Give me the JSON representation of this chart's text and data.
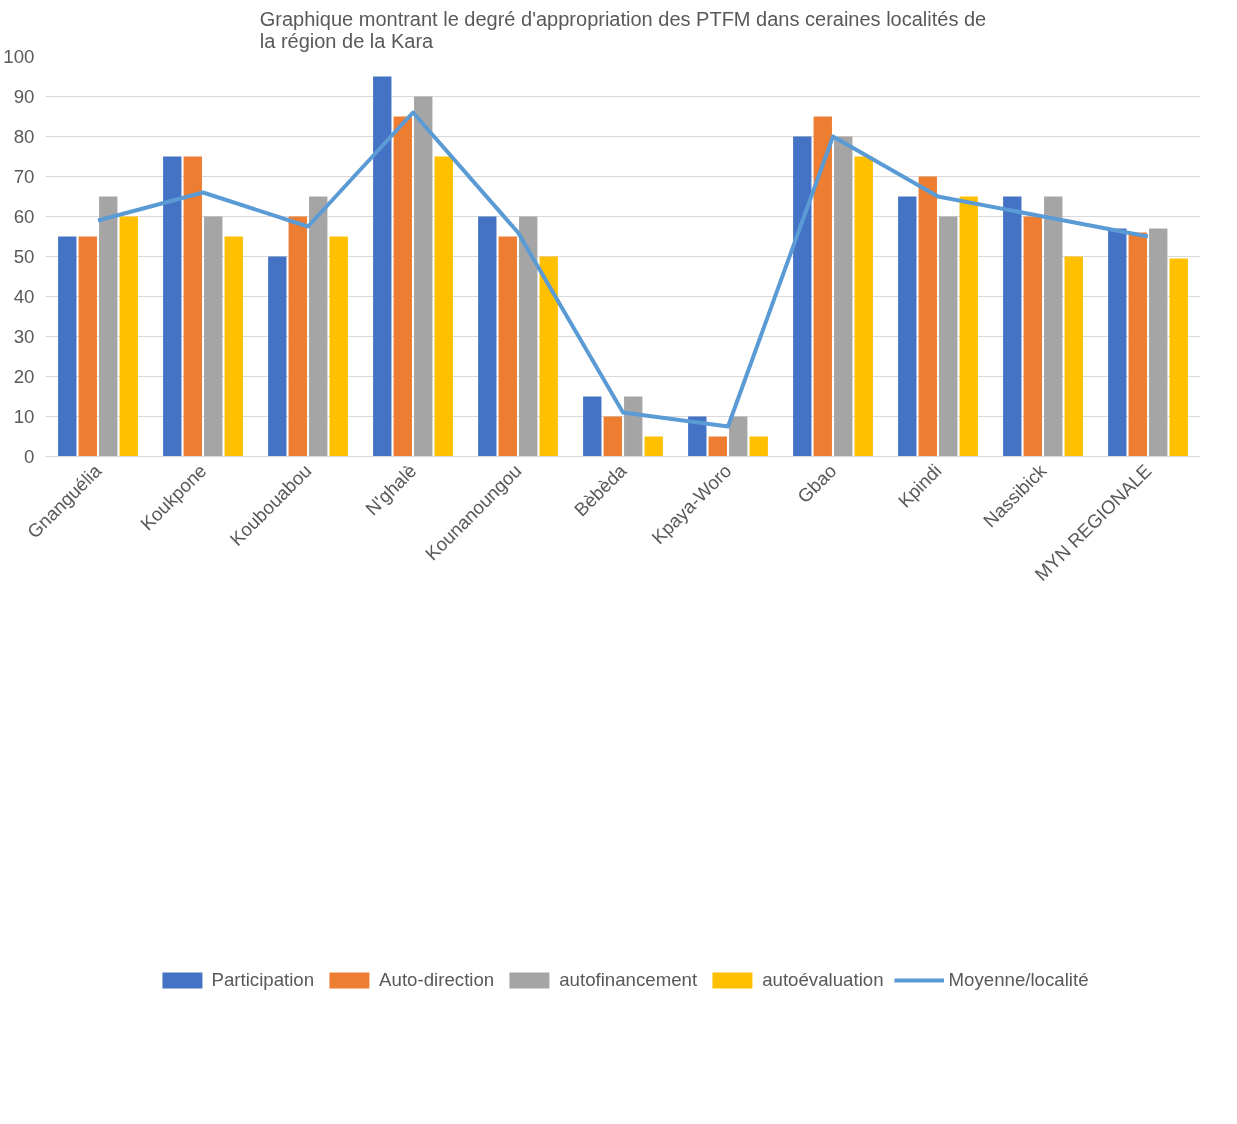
{
  "chart_data": {
    "type": "bar",
    "title": "Graphique montrant le degré d'appropriation des PTFM dans ceraines localités de la région de la Kara",
    "categories": [
      "Gnanguélia",
      "Koukpone",
      "Koubouabou",
      "N'ghalè",
      "Kounanoungou",
      "Bèbèda",
      "Kpaya-Woro",
      "Gbao",
      "Kpindi",
      "Nassibick",
      "MYN REGIONALE"
    ],
    "series": [
      {
        "name": "Participation",
        "color": "#4472c4",
        "values": [
          55,
          75,
          50,
          95,
          60,
          15,
          10,
          80,
          65,
          65,
          57
        ]
      },
      {
        "name": "Auto-direction",
        "color": "#ed7d31",
        "values": [
          55,
          75,
          60,
          85,
          55,
          10,
          5,
          85,
          70,
          60,
          56
        ]
      },
      {
        "name": "autofinancement",
        "color": "#a5a5a5",
        "values": [
          65,
          60,
          65,
          90,
          60,
          15,
          10,
          80,
          60,
          65,
          57
        ]
      },
      {
        "name": "autoévaluation",
        "color": "#ffc000",
        "values": [
          60,
          55,
          55,
          75,
          50,
          5,
          5,
          75,
          65,
          50,
          49.5
        ]
      },
      {
        "name": "Moyenne/localité",
        "color": "#5b9bd5",
        "type": "line",
        "values": [
          59,
          66,
          57.5,
          86,
          56,
          11,
          7.5,
          80,
          65,
          60,
          55
        ]
      }
    ],
    "ylim": [
      0,
      100
    ],
    "yticks": [
      0,
      10,
      20,
      30,
      40,
      50,
      60,
      70,
      80,
      90,
      100
    ],
    "grid": "y",
    "legend": "bottom"
  }
}
